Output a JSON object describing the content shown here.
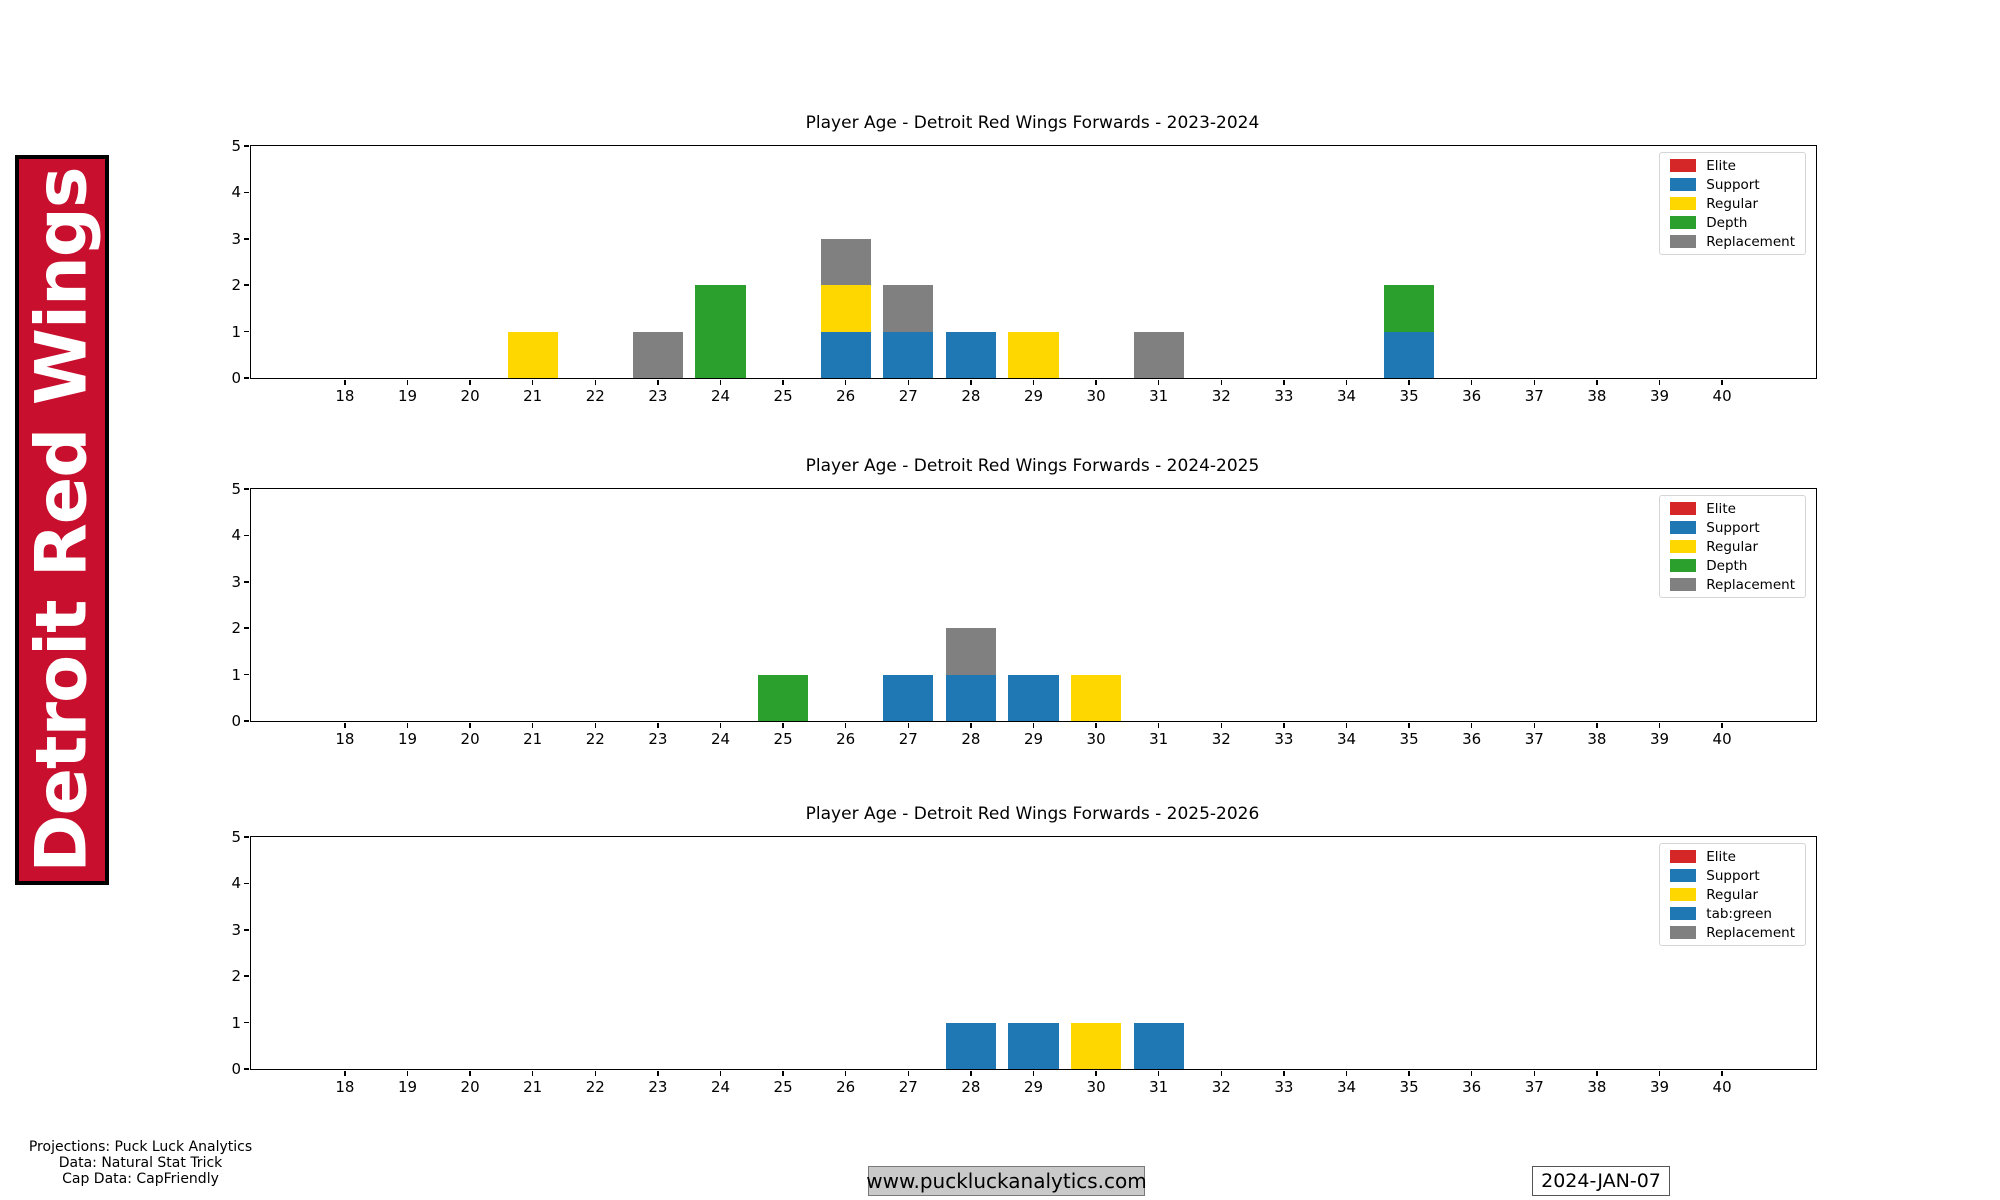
{
  "banner": {
    "text": "Detroit Red Wings",
    "bg": "#c8102e",
    "fg": "#ffffff"
  },
  "footer": {
    "credits": [
      "Projections: Puck Luck Analytics",
      "Data: Natural Stat Trick",
      "Cap Data: CapFriendly"
    ],
    "website": "www.puckluckanalytics.com",
    "date": "2024-JAN-07"
  },
  "colors": {
    "elite": "#d62728",
    "support": "#1f77b4",
    "regular": "#ffd700",
    "depth": "#2ca02c",
    "replacement": "#808080"
  },
  "chart_data": [
    {
      "type": "bar",
      "stacked": true,
      "title": "Player Age - Detroit Red Wings Forwards - 2023-2024",
      "xlabel": "",
      "ylabel": "",
      "xlim": [
        16.5,
        41.5
      ],
      "ylim": [
        0,
        5
      ],
      "xticks": [
        18,
        19,
        20,
        21,
        22,
        23,
        24,
        25,
        26,
        27,
        28,
        29,
        30,
        31,
        32,
        33,
        34,
        35,
        36,
        37,
        38,
        39,
        40
      ],
      "yticks": [
        0,
        1,
        2,
        3,
        4,
        5
      ],
      "bar_width": 0.8,
      "grid": false,
      "legend_position": "upper right",
      "legend": [
        {
          "label": "Elite",
          "color": "#d62728"
        },
        {
          "label": "Support",
          "color": "#1f77b4"
        },
        {
          "label": "Regular",
          "color": "#ffd700"
        },
        {
          "label": "Depth",
          "color": "#2ca02c"
        },
        {
          "label": "Replacement",
          "color": "#808080"
        }
      ],
      "bars": [
        {
          "age": 21,
          "segments": [
            {
              "label": "Regular",
              "color": "#ffd700",
              "value": 1
            }
          ]
        },
        {
          "age": 23,
          "segments": [
            {
              "label": "Replacement",
              "color": "#808080",
              "value": 1
            }
          ]
        },
        {
          "age": 24,
          "segments": [
            {
              "label": "Depth",
              "color": "#2ca02c",
              "value": 2
            }
          ]
        },
        {
          "age": 26,
          "segments": [
            {
              "label": "Support",
              "color": "#1f77b4",
              "value": 1
            },
            {
              "label": "Regular",
              "color": "#ffd700",
              "value": 1
            },
            {
              "label": "Replacement",
              "color": "#808080",
              "value": 1
            }
          ]
        },
        {
          "age": 27,
          "segments": [
            {
              "label": "Support",
              "color": "#1f77b4",
              "value": 1
            },
            {
              "label": "Replacement",
              "color": "#808080",
              "value": 1
            }
          ]
        },
        {
          "age": 28,
          "segments": [
            {
              "label": "Support",
              "color": "#1f77b4",
              "value": 1
            }
          ]
        },
        {
          "age": 29,
          "segments": [
            {
              "label": "Regular",
              "color": "#ffd700",
              "value": 1
            }
          ]
        },
        {
          "age": 31,
          "segments": [
            {
              "label": "Replacement",
              "color": "#808080",
              "value": 1
            }
          ]
        },
        {
          "age": 35,
          "segments": [
            {
              "label": "Support",
              "color": "#1f77b4",
              "value": 1
            },
            {
              "label": "Depth",
              "color": "#2ca02c",
              "value": 1
            }
          ]
        }
      ]
    },
    {
      "type": "bar",
      "stacked": true,
      "title": "Player Age - Detroit Red Wings Forwards - 2024-2025",
      "xlabel": "",
      "ylabel": "",
      "xlim": [
        16.5,
        41.5
      ],
      "ylim": [
        0,
        5
      ],
      "xticks": [
        18,
        19,
        20,
        21,
        22,
        23,
        24,
        25,
        26,
        27,
        28,
        29,
        30,
        31,
        32,
        33,
        34,
        35,
        36,
        37,
        38,
        39,
        40
      ],
      "yticks": [
        0,
        1,
        2,
        3,
        4,
        5
      ],
      "bar_width": 0.8,
      "grid": false,
      "legend_position": "upper right",
      "legend": [
        {
          "label": "Elite",
          "color": "#d62728"
        },
        {
          "label": "Support",
          "color": "#1f77b4"
        },
        {
          "label": "Regular",
          "color": "#ffd700"
        },
        {
          "label": "Depth",
          "color": "#2ca02c"
        },
        {
          "label": "Replacement",
          "color": "#808080"
        }
      ],
      "bars": [
        {
          "age": 25,
          "segments": [
            {
              "label": "Depth",
              "color": "#2ca02c",
              "value": 1
            }
          ]
        },
        {
          "age": 27,
          "segments": [
            {
              "label": "Support",
              "color": "#1f77b4",
              "value": 1
            }
          ]
        },
        {
          "age": 28,
          "segments": [
            {
              "label": "Support",
              "color": "#1f77b4",
              "value": 1
            },
            {
              "label": "Replacement",
              "color": "#808080",
              "value": 1
            }
          ]
        },
        {
          "age": 29,
          "segments": [
            {
              "label": "Support",
              "color": "#1f77b4",
              "value": 1
            }
          ]
        },
        {
          "age": 30,
          "segments": [
            {
              "label": "Regular",
              "color": "#ffd700",
              "value": 1
            }
          ]
        }
      ]
    },
    {
      "type": "bar",
      "stacked": true,
      "title": "Player Age - Detroit Red Wings Forwards - 2025-2026",
      "xlabel": "",
      "ylabel": "",
      "xlim": [
        16.5,
        41.5
      ],
      "ylim": [
        0,
        5
      ],
      "xticks": [
        18,
        19,
        20,
        21,
        22,
        23,
        24,
        25,
        26,
        27,
        28,
        29,
        30,
        31,
        32,
        33,
        34,
        35,
        36,
        37,
        38,
        39,
        40
      ],
      "yticks": [
        0,
        1,
        2,
        3,
        4,
        5
      ],
      "bar_width": 0.8,
      "grid": false,
      "legend_position": "upper right",
      "legend": [
        {
          "label": "Elite",
          "color": "#d62728"
        },
        {
          "label": "Support",
          "color": "#1f77b4"
        },
        {
          "label": "Regular",
          "color": "#ffd700"
        },
        {
          "label": "tab:green",
          "color": "#1f77b4"
        },
        {
          "label": "Replacement",
          "color": "#808080"
        }
      ],
      "bars": [
        {
          "age": 28,
          "segments": [
            {
              "label": "Support",
              "color": "#1f77b4",
              "value": 1
            }
          ]
        },
        {
          "age": 29,
          "segments": [
            {
              "label": "Support",
              "color": "#1f77b4",
              "value": 1
            }
          ]
        },
        {
          "age": 30,
          "segments": [
            {
              "label": "Regular",
              "color": "#ffd700",
              "value": 1
            }
          ]
        },
        {
          "age": 31,
          "segments": [
            {
              "label": "Support",
              "color": "#1f77b4",
              "value": 1
            }
          ]
        }
      ]
    }
  ]
}
